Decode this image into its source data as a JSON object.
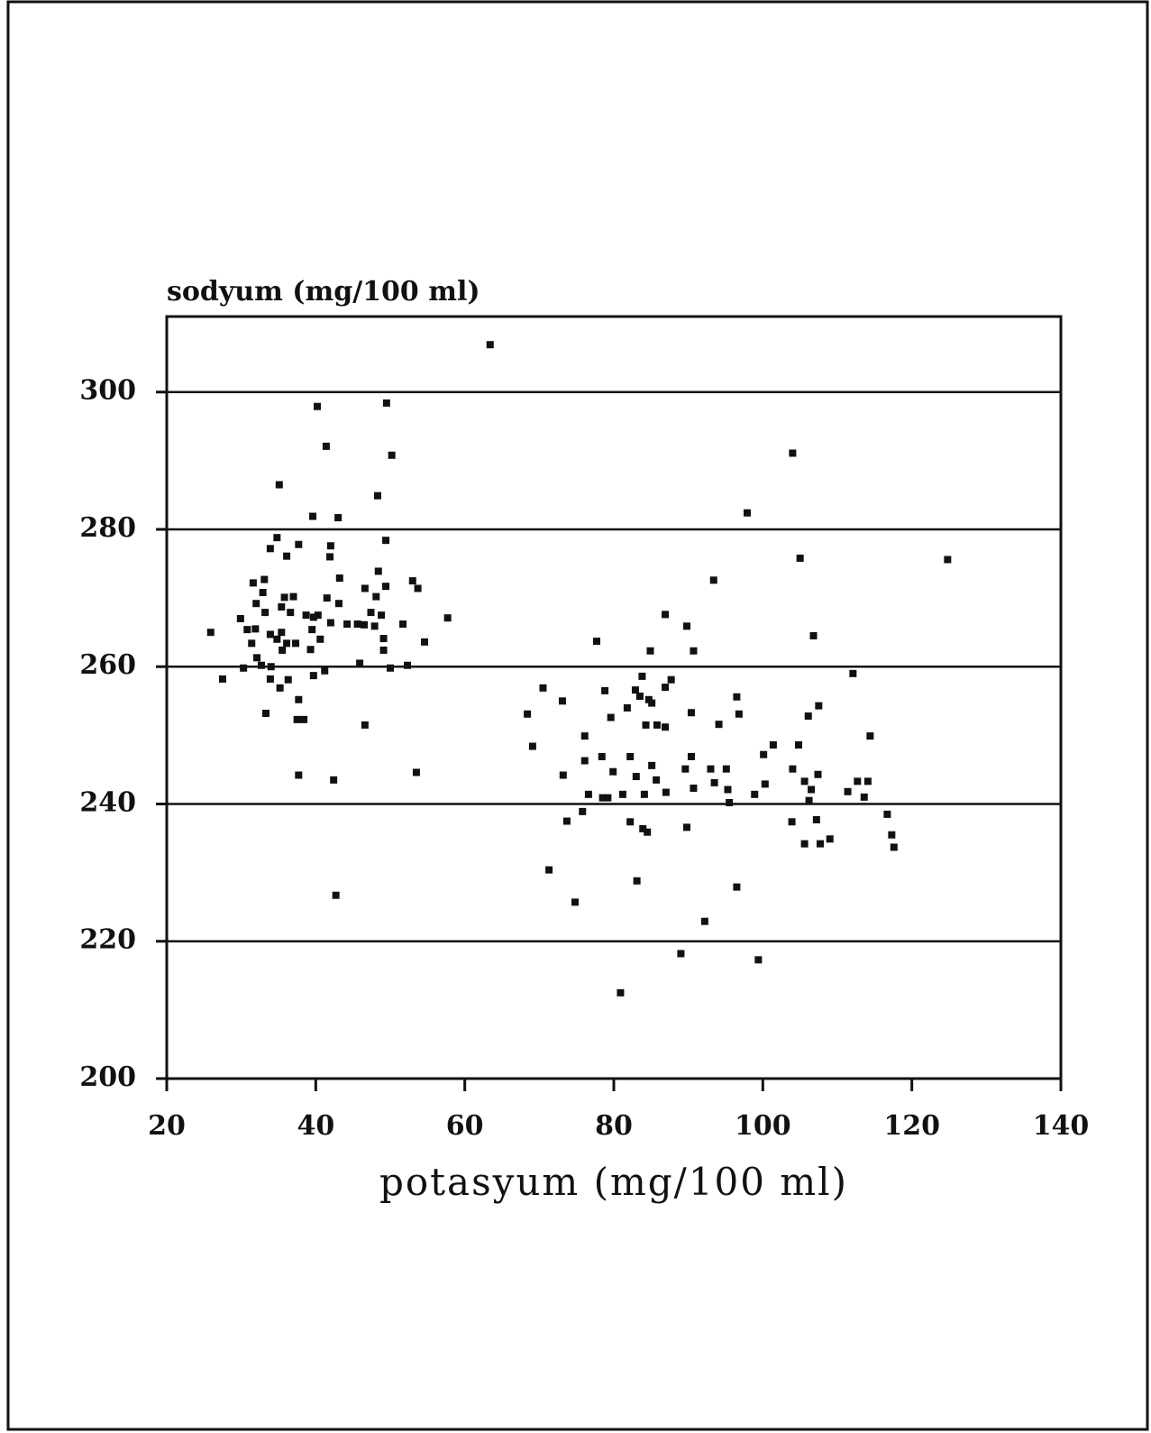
{
  "chart_data": {
    "type": "scatter",
    "y_label": "sodyum (mg/100 ml)",
    "x_label": "potasyum (mg/100 ml)",
    "xlim": [
      20,
      140
    ],
    "xticks": [
      20,
      40,
      60,
      80,
      100,
      120,
      140
    ],
    "ylim": [
      200,
      311
    ],
    "yticks": [
      200,
      220,
      240,
      260,
      280,
      300
    ],
    "grid": true,
    "color": "#111111",
    "x": [
      63.4,
      40.2,
      49.5,
      41.4,
      50.2,
      35.1,
      48.3,
      39.6,
      43.0,
      49.4,
      34.8,
      37.7,
      33.9,
      42.0,
      41.9,
      36.1,
      33.1,
      31.6,
      43.2,
      48.4,
      53.0,
      53.7,
      46.6,
      49.4,
      32.9,
      35.8,
      37.0,
      32.0,
      41.5,
      43.1,
      48.1,
      35.4,
      36.6,
      33.2,
      29.9,
      38.7,
      39.7,
      40.3,
      47.4,
      48.8,
      57.7,
      25.9,
      30.8,
      31.9,
      33.9,
      35.4,
      39.5,
      42.0,
      44.2,
      45.6,
      46.5,
      47.9,
      51.7,
      49.1,
      34.8,
      36.1,
      37.3,
      31.4,
      40.6,
      54.6,
      35.5,
      39.3,
      49.1,
      32.1,
      45.9,
      52.3,
      30.3,
      32.7,
      34.0,
      50.0,
      41.2,
      39.7,
      27.5,
      33.9,
      36.3,
      35.2,
      37.7,
      33.3,
      37.5,
      38.4,
      46.6,
      37.7,
      42.4,
      53.5,
      42.7,
      97.9,
      104.0,
      105.0,
      124.8,
      93.4,
      86.9,
      89.8,
      106.8,
      77.7,
      84.9,
      90.7,
      112.1,
      83.8,
      87.7,
      86.9,
      70.5,
      78.8,
      82.9,
      83.5,
      84.7,
      96.5,
      73.1,
      81.8,
      85.1,
      107.5,
      68.4,
      79.6,
      90.4,
      96.8,
      106.1,
      84.3,
      85.8,
      86.9,
      94.1,
      76.1,
      114.4,
      69.1,
      101.4,
      104.8,
      78.4,
      82.2,
      90.4,
      100.1,
      76.1,
      85.1,
      89.6,
      93.0,
      95.1,
      79.9,
      104.0,
      73.2,
      83.0,
      85.7,
      107.4,
      105.6,
      112.7,
      114.1,
      93.5,
      100.3,
      90.7,
      95.3,
      106.5,
      76.6,
      81.2,
      84.1,
      87.0,
      98.9,
      111.4,
      113.6,
      78.5,
      79.2,
      95.5,
      106.2,
      75.8,
      116.7,
      82.2,
      73.7,
      107.2,
      103.9,
      83.9,
      89.8,
      84.5,
      117.3,
      105.6,
      107.7,
      109.0,
      117.6,
      71.3,
      83.1,
      74.8,
      96.5,
      92.2,
      89.0,
      99.4,
      80.9
    ],
    "values": [
      306.9,
      297.9,
      298.4,
      292.1,
      290.8,
      286.5,
      284.9,
      281.9,
      281.7,
      278.4,
      278.8,
      277.8,
      277.2,
      277.6,
      276.0,
      276.1,
      272.7,
      272.2,
      272.9,
      273.9,
      272.5,
      271.4,
      271.4,
      271.7,
      270.8,
      270.1,
      270.2,
      269.2,
      270.0,
      269.2,
      270.2,
      268.7,
      267.9,
      267.9,
      267.0,
      267.5,
      267.2,
      267.5,
      267.9,
      267.5,
      267.1,
      265.0,
      265.4,
      265.5,
      264.7,
      265.0,
      265.4,
      266.4,
      266.2,
      266.2,
      266.1,
      265.9,
      266.2,
      264.1,
      264.0,
      263.4,
      263.4,
      263.4,
      264.0,
      263.6,
      262.4,
      262.5,
      262.4,
      261.3,
      260.5,
      260.2,
      259.8,
      260.2,
      260.0,
      259.8,
      259.4,
      258.7,
      258.2,
      258.2,
      258.1,
      256.9,
      255.2,
      253.2,
      252.3,
      252.3,
      251.5,
      244.2,
      243.5,
      244.6,
      226.7,
      282.4,
      291.1,
      275.8,
      275.6,
      272.6,
      267.6,
      265.9,
      264.5,
      263.7,
      262.3,
      262.3,
      259.0,
      258.6,
      258.1,
      257.0,
      256.9,
      256.5,
      256.6,
      255.7,
      255.2,
      255.6,
      255.0,
      254.0,
      254.7,
      254.3,
      253.1,
      252.6,
      253.3,
      253.1,
      252.8,
      251.5,
      251.5,
      251.2,
      251.6,
      249.9,
      249.9,
      248.4,
      248.6,
      248.6,
      246.9,
      246.9,
      246.9,
      247.2,
      246.3,
      245.6,
      245.1,
      245.1,
      245.1,
      244.7,
      245.1,
      244.2,
      244.0,
      243.5,
      244.3,
      243.3,
      243.3,
      243.3,
      243.1,
      242.9,
      242.3,
      242.1,
      242.1,
      241.4,
      241.4,
      241.4,
      241.7,
      241.4,
      241.8,
      241.0,
      240.9,
      240.9,
      240.2,
      240.5,
      238.9,
      238.5,
      237.4,
      237.5,
      237.7,
      237.4,
      236.4,
      236.6,
      235.9,
      235.5,
      234.2,
      234.2,
      234.9,
      233.7,
      230.4,
      228.8,
      225.7,
      227.9,
      222.9,
      218.2,
      217.3,
      212.5
    ]
  }
}
